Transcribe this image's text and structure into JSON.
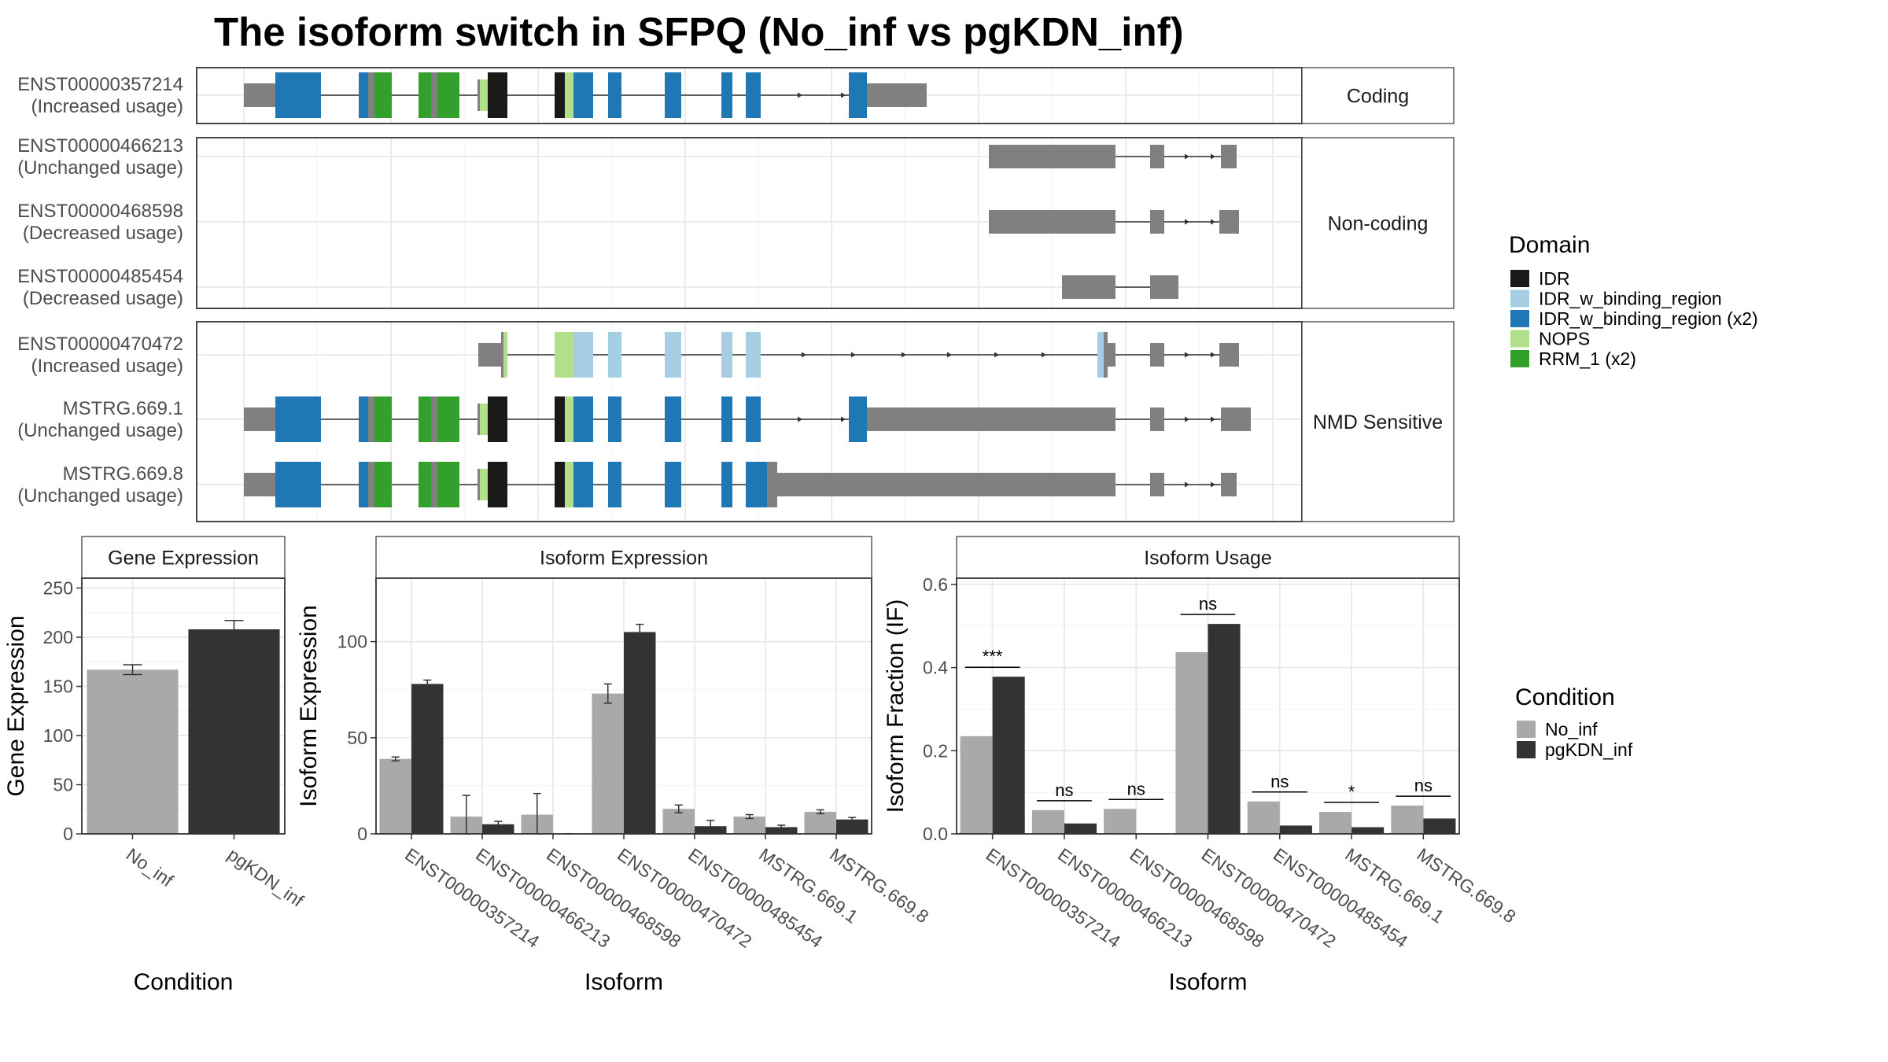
{
  "title": "The isoform switch in SFPQ (No_inf vs pgKDN_inf)",
  "colors": {
    "utr": "#808080",
    "intron": "#333333",
    "no_inf": "#a9a9a9",
    "pgkdn_inf": "#333333",
    "IDR": "#1a1a1a",
    "IDR_w_binding_region": "#a6cee3",
    "IDR_w_binding_region_x2": "#1f78b4",
    "NOPS": "#b2df8a",
    "RRM_1_x2": "#33a02c"
  },
  "structure": {
    "groups": [
      {
        "label": "Coding",
        "rows": [
          {
            "id": "ENST00000357214",
            "usage": "(Increased usage)"
          }
        ]
      },
      {
        "label": "Non-coding",
        "rows": [
          {
            "id": "ENST00000466213",
            "usage": "(Unchanged usage)"
          },
          {
            "id": "ENST00000468598",
            "usage": "(Decreased usage)"
          },
          {
            "id": "ENST00000485454",
            "usage": "(Decreased usage)"
          }
        ]
      },
      {
        "label": "NMD Sensitive",
        "rows": [
          {
            "id": "ENST00000470472",
            "usage": "(Increased usage)"
          },
          {
            "id": "MSTRG.669.1",
            "usage": "(Unchanged usage)"
          },
          {
            "id": "MSTRG.669.8",
            "usage": "(Unchanged usage)"
          }
        ]
      }
    ],
    "domain_legend": {
      "title": "Domain",
      "items": [
        {
          "label": "IDR",
          "color": "#1a1a1a"
        },
        {
          "label": "IDR_w_binding_region",
          "color": "#a6cee3"
        },
        {
          "label": "IDR_w_binding_region (x2)",
          "color": "#1f78b4"
        },
        {
          "label": "NOPS",
          "color": "#b2df8a"
        },
        {
          "label": "RRM_1 (x2)",
          "color": "#33a02c"
        }
      ]
    }
  },
  "chart_data": [
    {
      "type": "bar",
      "title": "Gene Expression",
      "xlabel": "Condition",
      "ylabel": "Gene Expression",
      "ylim": [
        0,
        260
      ],
      "yticks": [
        0,
        50,
        100,
        150,
        200,
        250
      ],
      "categories": [
        "No_inf",
        "pgKDN_inf"
      ],
      "values": [
        167,
        208
      ],
      "errors": [
        5,
        9
      ]
    },
    {
      "type": "bar",
      "title": "Isoform Expression",
      "xlabel": "Isoform",
      "ylabel": "Isoform Expression",
      "ylim": [
        0,
        133
      ],
      "yticks": [
        0,
        50,
        100
      ],
      "categories": [
        "ENST00000357214",
        "ENST00000466213",
        "ENST00000468598",
        "ENST00000470472",
        "ENST00000485454",
        "MSTRG.669.1",
        "MSTRG.669.8"
      ],
      "series": [
        {
          "name": "No_inf",
          "values": [
            39,
            9,
            10,
            73,
            13,
            9,
            11.5
          ],
          "errors": [
            1,
            11,
            11,
            5,
            2,
            1,
            1
          ]
        },
        {
          "name": "pgKDN_inf",
          "values": [
            78,
            5,
            0,
            105,
            4,
            3.5,
            7.5
          ],
          "errors": [
            2,
            1.5,
            0,
            4,
            3,
            1,
            1
          ]
        }
      ]
    },
    {
      "type": "bar",
      "title": "Isoform Usage",
      "xlabel": "Isoform",
      "ylabel": "Isoform Fraction (IF)",
      "ylim": [
        0,
        0.615
      ],
      "yticks": [
        0.0,
        0.2,
        0.4,
        0.6
      ],
      "categories": [
        "ENST00000357214",
        "ENST00000466213",
        "ENST00000468598",
        "ENST00000470472",
        "ENST00000485454",
        "MSTRG.669.1",
        "MSTRG.669.8"
      ],
      "series": [
        {
          "name": "No_inf",
          "values": [
            0.235,
            0.057,
            0.06,
            0.437,
            0.078,
            0.053,
            0.068
          ]
        },
        {
          "name": "pgKDN_inf",
          "values": [
            0.378,
            0.025,
            0.0,
            0.505,
            0.02,
            0.016,
            0.037
          ]
        }
      ],
      "significance": [
        "***",
        "ns",
        "ns",
        "ns",
        "ns",
        "*",
        "ns"
      ]
    }
  ],
  "condition_legend": {
    "title": "Condition",
    "items": [
      {
        "label": "No_inf",
        "color": "#a9a9a9"
      },
      {
        "label": "pgKDN_inf",
        "color": "#333333"
      }
    ]
  }
}
